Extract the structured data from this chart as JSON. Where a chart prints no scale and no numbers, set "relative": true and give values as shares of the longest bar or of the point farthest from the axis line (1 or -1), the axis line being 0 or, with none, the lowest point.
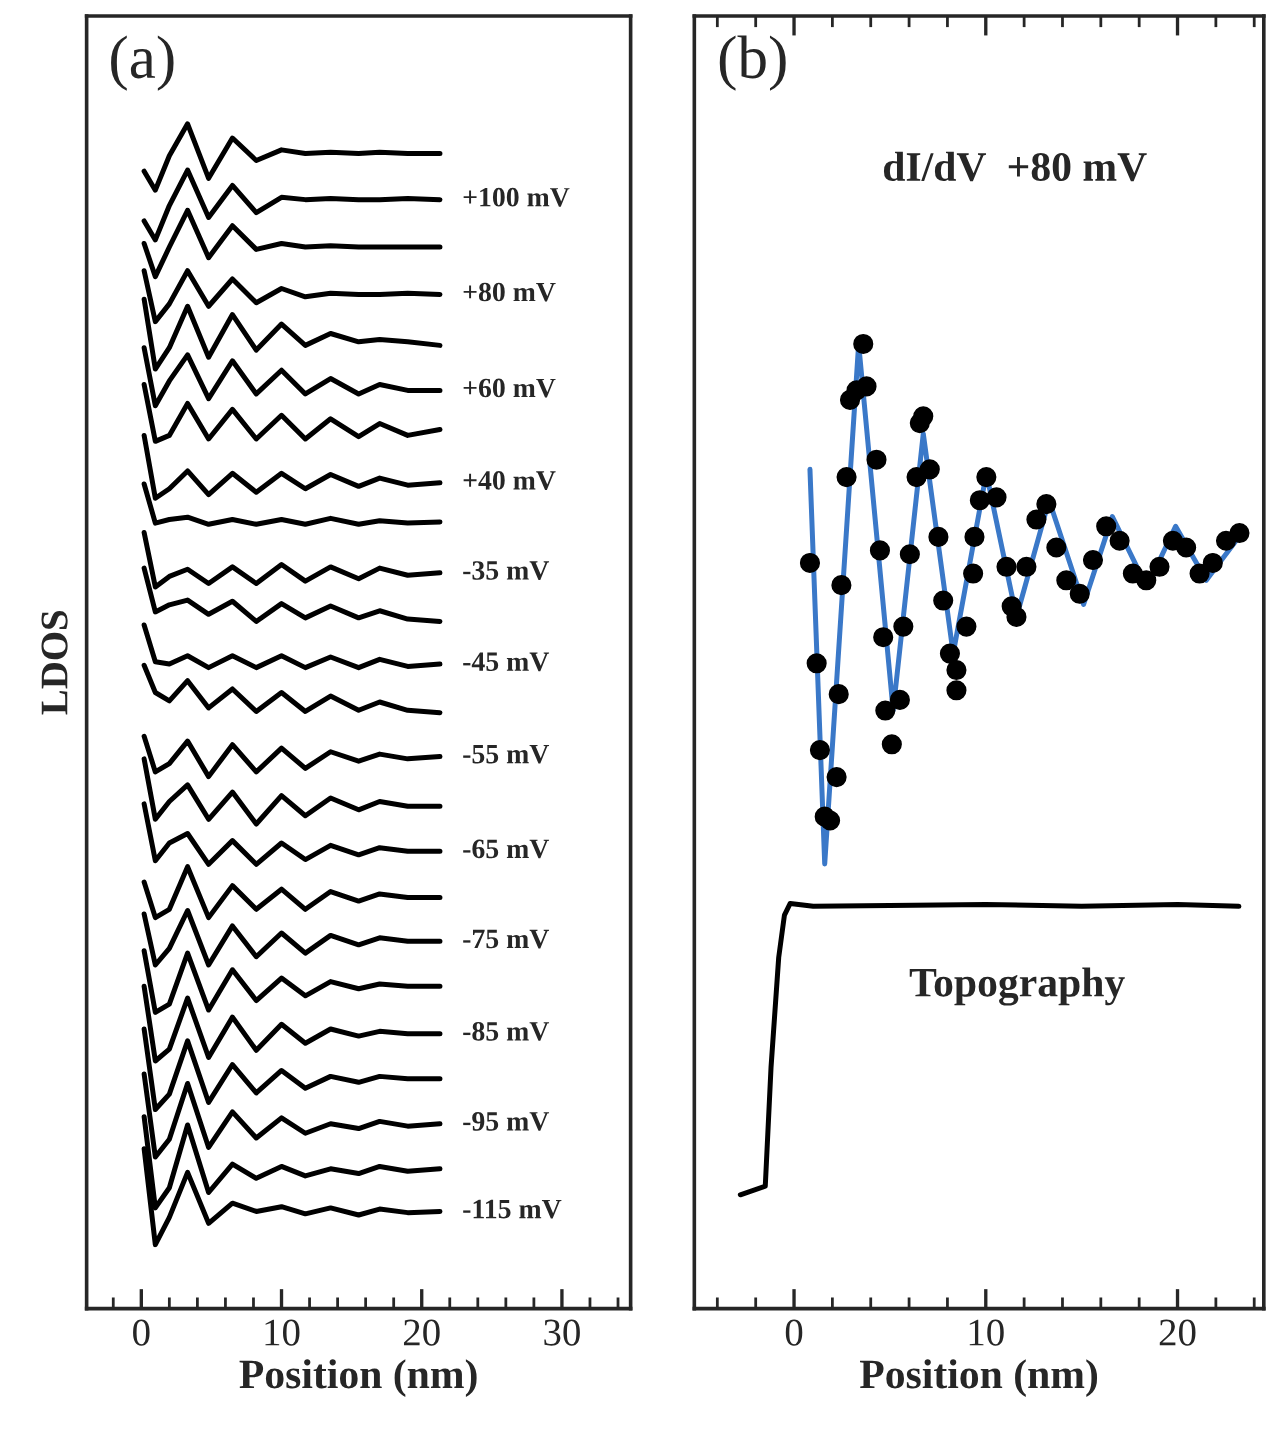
{
  "chart_data": [
    {
      "type": "line",
      "relative": true,
      "ylabel": "LDOS",
      "xlabel": "Position (nm)",
      "tick_labels": "x",
      "xlim": [
        -3.9,
        34.9
      ],
      "xticks": [
        0,
        10,
        20,
        30
      ],
      "annotations": [
        "(a)"
      ],
      "x": [
        0.2,
        1,
        2,
        3.3,
        4.8,
        6.5,
        8.2,
        10,
        11.7,
        13.5,
        15.5,
        17,
        19,
        21.3
      ],
      "series": [
        {
          "color": "#000000",
          "values": [
            0.96,
            0.944,
            0.973,
            1.0,
            0.954,
            0.988,
            0.969,
            0.978,
            0.975,
            0.976,
            0.975,
            0.976,
            0.975,
            0.975
          ]
        },
        {
          "name": "+100 mV",
          "color": "#000000",
          "values": [
            0.918,
            0.902,
            0.931,
            0.961,
            0.921,
            0.948,
            0.925,
            0.938,
            0.936,
            0.937,
            0.936,
            0.936,
            0.937,
            0.936
          ]
        },
        {
          "color": "#000000",
          "values": [
            0.899,
            0.871,
            0.896,
            0.927,
            0.887,
            0.914,
            0.894,
            0.899,
            0.896,
            0.897,
            0.896,
            0.896,
            0.896,
            0.896
          ]
        },
        {
          "name": "+80 mV",
          "color": "#000000",
          "values": [
            0.876,
            0.833,
            0.848,
            0.876,
            0.846,
            0.869,
            0.849,
            0.861,
            0.854,
            0.857,
            0.856,
            0.856,
            0.857,
            0.856
          ]
        },
        {
          "color": "#000000",
          "values": [
            0.852,
            0.793,
            0.811,
            0.846,
            0.803,
            0.839,
            0.809,
            0.831,
            0.813,
            0.823,
            0.816,
            0.818,
            0.816,
            0.813
          ]
        },
        {
          "name": "+60 mV",
          "color": "#000000",
          "values": [
            0.811,
            0.762,
            0.783,
            0.805,
            0.768,
            0.8,
            0.772,
            0.792,
            0.772,
            0.785,
            0.772,
            0.78,
            0.775,
            0.775
          ]
        },
        {
          "color": "#000000",
          "values": [
            0.78,
            0.732,
            0.737,
            0.764,
            0.734,
            0.759,
            0.734,
            0.754,
            0.734,
            0.751,
            0.736,
            0.747,
            0.737,
            0.742
          ]
        },
        {
          "name": "+40 mV",
          "color": "#000000",
          "values": [
            0.737,
            0.684,
            0.692,
            0.707,
            0.687,
            0.705,
            0.689,
            0.705,
            0.692,
            0.704,
            0.694,
            0.701,
            0.695,
            0.697
          ]
        },
        {
          "color": "#000000",
          "values": [
            0.696,
            0.663,
            0.666,
            0.668,
            0.662,
            0.666,
            0.662,
            0.666,
            0.662,
            0.667,
            0.662,
            0.665,
            0.663,
            0.664
          ]
        },
        {
          "name": "-35 mV",
          "color": "#000000",
          "values": [
            0.655,
            0.609,
            0.618,
            0.624,
            0.612,
            0.626,
            0.612,
            0.628,
            0.614,
            0.626,
            0.616,
            0.625,
            0.619,
            0.621
          ]
        },
        {
          "color": "#000000",
          "values": [
            0.625,
            0.588,
            0.594,
            0.598,
            0.586,
            0.597,
            0.58,
            0.595,
            0.583,
            0.593,
            0.583,
            0.589,
            0.582,
            0.58
          ]
        },
        {
          "name": "-45 mV",
          "color": "#000000",
          "values": [
            0.577,
            0.546,
            0.544,
            0.551,
            0.541,
            0.551,
            0.541,
            0.551,
            0.541,
            0.55,
            0.541,
            0.548,
            0.542,
            0.544
          ]
        },
        {
          "color": "#000000",
          "values": [
            0.543,
            0.52,
            0.513,
            0.53,
            0.507,
            0.523,
            0.504,
            0.52,
            0.504,
            0.517,
            0.505,
            0.512,
            0.505,
            0.503
          ]
        },
        {
          "name": "-55 mV",
          "color": "#000000",
          "values": [
            0.483,
            0.453,
            0.46,
            0.479,
            0.449,
            0.476,
            0.453,
            0.473,
            0.456,
            0.47,
            0.462,
            0.468,
            0.464,
            0.466
          ]
        },
        {
          "color": "#000000",
          "values": [
            0.464,
            0.413,
            0.428,
            0.442,
            0.413,
            0.436,
            0.409,
            0.433,
            0.416,
            0.431,
            0.421,
            0.428,
            0.424,
            0.424
          ]
        },
        {
          "name": "-65 mV",
          "color": "#000000",
          "values": [
            0.426,
            0.378,
            0.393,
            0.401,
            0.375,
            0.395,
            0.375,
            0.393,
            0.379,
            0.391,
            0.383,
            0.389,
            0.386,
            0.386
          ]
        },
        {
          "color": "#000000",
          "values": [
            0.36,
            0.33,
            0.337,
            0.373,
            0.33,
            0.357,
            0.337,
            0.354,
            0.337,
            0.352,
            0.344,
            0.35,
            0.347,
            0.347
          ]
        },
        {
          "name": "-75 mV",
          "color": "#000000",
          "values": [
            0.333,
            0.29,
            0.304,
            0.336,
            0.29,
            0.323,
            0.297,
            0.317,
            0.3,
            0.315,
            0.307,
            0.313,
            0.31,
            0.31
          ]
        },
        {
          "color": "#000000",
          "values": [
            0.302,
            0.25,
            0.257,
            0.3,
            0.252,
            0.286,
            0.26,
            0.279,
            0.264,
            0.276,
            0.27,
            0.274,
            0.272,
            0.272
          ]
        },
        {
          "name": "-85 mV",
          "color": "#000000",
          "values": [
            0.272,
            0.209,
            0.219,
            0.262,
            0.212,
            0.246,
            0.218,
            0.24,
            0.224,
            0.236,
            0.23,
            0.234,
            0.232,
            0.232
          ]
        },
        {
          "color": "#000000",
          "values": [
            0.236,
            0.168,
            0.181,
            0.226,
            0.174,
            0.206,
            0.182,
            0.201,
            0.186,
            0.196,
            0.191,
            0.196,
            0.194,
            0.194
          ]
        },
        {
          "name": "-95 mV",
          "color": "#000000",
          "values": [
            0.198,
            0.128,
            0.143,
            0.19,
            0.136,
            0.166,
            0.144,
            0.161,
            0.148,
            0.156,
            0.152,
            0.158,
            0.154,
            0.156
          ]
        },
        {
          "color": "#000000",
          "values": [
            0.162,
            0.085,
            0.102,
            0.155,
            0.098,
            0.122,
            0.11,
            0.12,
            0.112,
            0.118,
            0.114,
            0.12,
            0.116,
            0.118
          ]
        },
        {
          "name": "-115 mV",
          "color": "#000000",
          "values": [
            0.135,
            0.054,
            0.077,
            0.115,
            0.072,
            0.089,
            0.082,
            0.086,
            0.08,
            0.085,
            0.079,
            0.084,
            0.081,
            0.082
          ]
        }
      ]
    },
    {
      "type": "scatter",
      "relative": true,
      "xlabel": "Position (nm)",
      "tick_labels": "x",
      "xlim": [
        -5.2,
        24.5
      ],
      "xticks": [
        0,
        10,
        20
      ],
      "annotations": [
        "(b)",
        "dI/dV  +80 mV",
        {
          "text": "Topography",
          "x": 6,
          "y": 0.417
        }
      ],
      "series": [
        {
          "type": "scatter",
          "marker": "circle",
          "color": "#000000",
          "x": [
            0.83,
            1.18,
            1.35,
            1.6,
            1.88,
            2.22,
            2.33,
            2.47,
            2.74,
            2.92,
            3.26,
            3.61,
            3.78,
            4.3,
            4.48,
            4.65,
            4.76,
            5.1,
            5.52,
            5.7,
            6.04,
            6.39,
            6.56,
            6.74,
            7.08,
            7.53,
            7.78,
            8.13,
            8.47,
            8.47,
            8.99,
            9.34,
            9.41,
            9.69,
            10.03,
            10.56,
            11.08,
            11.35,
            11.6,
            12.12,
            12.64,
            13.16,
            13.68,
            14.2,
            14.9,
            15.59,
            16.28,
            16.98,
            17.67,
            18.37,
            19.06,
            19.76,
            20.45,
            21.15,
            21.84,
            22.53,
            23.23
          ],
          "values": [
            0.773,
            0.669,
            0.579,
            0.51,
            0.506,
            0.551,
            0.637,
            0.75,
            0.862,
            0.942,
            0.952,
            1.0,
            0.956,
            0.88,
            0.786,
            0.696,
            0.62,
            0.585,
            0.631,
            0.707,
            0.782,
            0.862,
            0.918,
            0.925,
            0.87,
            0.8,
            0.734,
            0.679,
            0.662,
            0.641,
            0.707,
            0.762,
            0.8,
            0.838,
            0.862,
            0.841,
            0.769,
            0.728,
            0.717,
            0.769,
            0.818,
            0.834,
            0.789,
            0.755,
            0.741,
            0.776,
            0.811,
            0.796,
            0.762,
            0.755,
            0.769,
            0.796,
            0.789,
            0.762,
            0.773,
            0.796,
            0.804
          ]
        },
        {
          "type": "line",
          "color": "#3a78c8",
          "x": [
            0.83,
            1.6,
            3.37,
            5.17,
            6.74,
            8.3,
            10.03,
            11.6,
            13.3,
            15.1,
            16.6,
            18.4,
            19.9,
            21.5,
            23.05
          ],
          "values": [
            0.87,
            0.461,
            1.0,
            0.62,
            0.907,
            0.679,
            0.866,
            0.717,
            0.838,
            0.73,
            0.821,
            0.748,
            0.811,
            0.755,
            0.796
          ]
        },
        {
          "type": "line",
          "color": "#000000",
          "x": [
            -2.8,
            -1.5,
            -1.2,
            -0.8,
            -0.5,
            -0.2,
            1,
            5,
            10,
            15,
            20,
            23.2
          ],
          "values": [
            0.118,
            0.127,
            0.25,
            0.364,
            0.408,
            0.42,
            0.417,
            0.418,
            0.419,
            0.417,
            0.419,
            0.417
          ]
        }
      ]
    }
  ]
}
